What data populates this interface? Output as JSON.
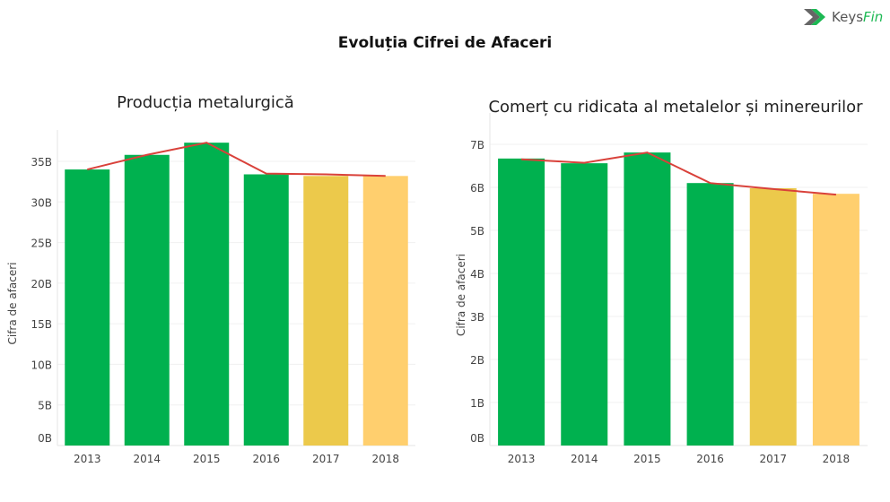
{
  "title": "Evoluția Cifrei de Afaceri",
  "logo": {
    "text_main": "Keys",
    "text_accent": "Fin"
  },
  "colors": {
    "actual": "#00b14f",
    "forecast1": "#ecc94b",
    "forecast2": "#ffcf6e",
    "trend": "#d9413a"
  },
  "chart_data": [
    {
      "type": "bar",
      "title": "Producția metalurgică",
      "ylabel": "Cifra de afaceri",
      "xlabel": "",
      "categories": [
        "2013",
        "2014",
        "2015",
        "2016",
        "2017",
        "2018"
      ],
      "values": [
        34.0,
        35.8,
        37.3,
        33.4,
        33.2,
        33.2
      ],
      "trend_line": [
        34.0,
        35.8,
        37.3,
        33.5,
        33.4,
        33.2
      ],
      "yticks": [
        0,
        5,
        10,
        15,
        20,
        25,
        30,
        35
      ],
      "ytick_labels": [
        "0B",
        "5B",
        "10B",
        "15B",
        "20B",
        "25B",
        "30B",
        "35B"
      ],
      "ylim": [
        0,
        35
      ],
      "unit": "B",
      "grid": true
    },
    {
      "type": "bar",
      "title": "Comerț cu ridicata al metalelor și minereurilor",
      "ylabel": "Cifra de afaceri",
      "xlabel": "",
      "categories": [
        "2013",
        "2014",
        "2015",
        "2016",
        "2017",
        "2018"
      ],
      "values": [
        6.67,
        6.56,
        6.81,
        6.1,
        5.98,
        5.85
      ],
      "trend_line": [
        6.65,
        6.57,
        6.81,
        6.1,
        5.96,
        5.83
      ],
      "yticks": [
        0,
        1,
        2,
        3,
        4,
        5,
        6,
        7
      ],
      "ytick_labels": [
        "0B",
        "1B",
        "2B",
        "3B",
        "4B",
        "5B",
        "6B",
        "7B"
      ],
      "ylim": [
        0,
        7
      ],
      "unit": "B",
      "grid": true
    }
  ]
}
